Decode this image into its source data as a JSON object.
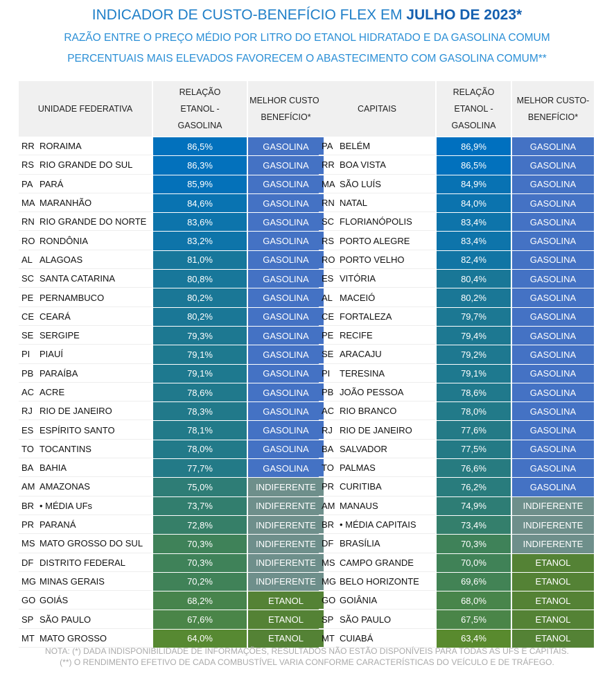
{
  "title": {
    "main": "INDICADOR DE CUSTO-BENEFÍCIO FLEX EM ",
    "bold": "JULHO DE 2023*"
  },
  "subtitle1": "RAZÃO ENTRE O PREÇO MÉDIO POR LITRO DO ETANOL HIDRATADO E DA GASOLINA COMUM",
  "subtitle2": "PERCENTUAIS MAIS ELEVADOS FAVORECEM O ABASTECIMENTO COM GASOLINA COMUM**",
  "colors": {
    "GASOLINA": "#4472c4",
    "INDIFERENTE": "#6e8f8b",
    "ETANOL": "#548235",
    "high": "#0070c0",
    "low": "#5b8a2c"
  },
  "left": {
    "headers": [
      "UNIDADE FEDERATIVA",
      "RELAÇÃO ETANOL - GASOLINA",
      "MELHOR CUSTO-BENEFÍCIO*"
    ],
    "rows": [
      [
        "RR",
        "RORAIMA",
        "86,5%",
        "GASOLINA"
      ],
      [
        "RS",
        "RIO GRANDE DO SUL",
        "86,3%",
        "GASOLINA"
      ],
      [
        "PA",
        "PARÁ",
        "85,9%",
        "GASOLINA"
      ],
      [
        "MA",
        "MARANHÃO",
        "84,6%",
        "GASOLINA"
      ],
      [
        "RN",
        "RIO GRANDE DO NORTE",
        "83,6%",
        "GASOLINA"
      ],
      [
        "RO",
        "RONDÔNIA",
        "83,2%",
        "GASOLINA"
      ],
      [
        "AL",
        "ALAGOAS",
        "81,0%",
        "GASOLINA"
      ],
      [
        "SC",
        "SANTA CATARINA",
        "80,8%",
        "GASOLINA"
      ],
      [
        "PE",
        "PERNAMBUCO",
        "80,2%",
        "GASOLINA"
      ],
      [
        "CE",
        "CEARÁ",
        "80,2%",
        "GASOLINA"
      ],
      [
        "SE",
        "SERGIPE",
        "79,3%",
        "GASOLINA"
      ],
      [
        "PI",
        "PIAUÍ",
        "79,1%",
        "GASOLINA"
      ],
      [
        "PB",
        "PARAÍBA",
        "79,1%",
        "GASOLINA"
      ],
      [
        "AC",
        "ACRE",
        "78,6%",
        "GASOLINA"
      ],
      [
        "RJ",
        "RIO DE JANEIRO",
        "78,3%",
        "GASOLINA"
      ],
      [
        "ES",
        "ESPÍRITO SANTO",
        "78,1%",
        "GASOLINA"
      ],
      [
        "TO",
        "TOCANTINS",
        "78,0%",
        "GASOLINA"
      ],
      [
        "BA",
        "BAHIA",
        "77,7%",
        "GASOLINA"
      ],
      [
        "AM",
        "AMAZONAS",
        "75,0%",
        "INDIFERENTE"
      ],
      [
        "BR",
        "• MÉDIA UFs",
        "73,7%",
        "INDIFERENTE"
      ],
      [
        "PR",
        "PARANÁ",
        "72,8%",
        "INDIFERENTE"
      ],
      [
        "MS",
        "MATO GROSSO DO SUL",
        "70,3%",
        "INDIFERENTE"
      ],
      [
        "DF",
        "DISTRITO FEDERAL",
        "70,3%",
        "INDIFERENTE"
      ],
      [
        "MG",
        "MINAS GERAIS",
        "70,2%",
        "INDIFERENTE"
      ],
      [
        "GO",
        "GOIÁS",
        "68,2%",
        "ETANOL"
      ],
      [
        "SP",
        "SÃO PAULO",
        "67,6%",
        "ETANOL"
      ],
      [
        "MT",
        "MATO GROSSO",
        "64,0%",
        "ETANOL"
      ]
    ]
  },
  "right": {
    "headers": [
      "CAPITAIS",
      "RELAÇÃO ETANOL - GASOLINA",
      "MELHOR CUSTO-BENEFÍCIO*"
    ],
    "rows": [
      [
        "PA",
        "BELÉM",
        "86,9%",
        "GASOLINA"
      ],
      [
        "RR",
        "BOA VISTA",
        "86,5%",
        "GASOLINA"
      ],
      [
        "MA",
        "SÃO LUÍS",
        "84,9%",
        "GASOLINA"
      ],
      [
        "RN",
        "NATAL",
        "84,0%",
        "GASOLINA"
      ],
      [
        "SC",
        "FLORIANÓPOLIS",
        "83,4%",
        "GASOLINA"
      ],
      [
        "RS",
        "PORTO ALEGRE",
        "83,4%",
        "GASOLINA"
      ],
      [
        "RO",
        "PORTO VELHO",
        "82,4%",
        "GASOLINA"
      ],
      [
        "ES",
        "VITÓRIA",
        "80,4%",
        "GASOLINA"
      ],
      [
        "AL",
        "MACEIÓ",
        "80,2%",
        "GASOLINA"
      ],
      [
        "CE",
        "FORTALEZA",
        "79,7%",
        "GASOLINA"
      ],
      [
        "PE",
        "RECIFE",
        "79,4%",
        "GASOLINA"
      ],
      [
        "SE",
        "ARACAJU",
        "79,2%",
        "GASOLINA"
      ],
      [
        "PI",
        "TERESINA",
        "79,1%",
        "GASOLINA"
      ],
      [
        "PB",
        "JOÃO PESSOA",
        "78,6%",
        "GASOLINA"
      ],
      [
        "AC",
        "RIO BRANCO",
        "78,0%",
        "GASOLINA"
      ],
      [
        "RJ",
        "RIO DE JANEIRO",
        "77,6%",
        "GASOLINA"
      ],
      [
        "BA",
        "SALVADOR",
        "77,5%",
        "GASOLINA"
      ],
      [
        "TO",
        "PALMAS",
        "76,6%",
        "GASOLINA"
      ],
      [
        "PR",
        "CURITIBA",
        "76,2%",
        "GASOLINA"
      ],
      [
        "AM",
        "MANAUS",
        "74,9%",
        "INDIFERENTE"
      ],
      [
        "BR",
        "• MÉDIA CAPITAIS",
        "73,4%",
        "INDIFERENTE"
      ],
      [
        "DF",
        "BRASÍLIA",
        "70,3%",
        "INDIFERENTE"
      ],
      [
        "MS",
        "CAMPO GRANDE",
        "70,0%",
        "ETANOL"
      ],
      [
        "MG",
        "BELO HORIZONTE",
        "69,6%",
        "ETANOL"
      ],
      [
        "GO",
        "GOIÂNIA",
        "68,0%",
        "ETANOL"
      ],
      [
        "SP",
        "SÃO PAULO",
        "67,5%",
        "ETANOL"
      ],
      [
        "MT",
        "CUIABÁ",
        "63,4%",
        "ETANOL"
      ]
    ]
  },
  "note1": "NOTA:  (*) DADA INDISPONIBILIDADE DE INFORMAÇÕES, RESULTADOS NÃO ESTÃO DISPONÍVEIS PARA TODAS AS UFS E CAPITAIS.",
  "note2": "(**) O RENDIMENTO EFETIVO DE CADA COMBUSTÍVEL VARIA CONFORME CARACTERÍSTICAS DO VEÍCULO E DE TRÁFEGO."
}
